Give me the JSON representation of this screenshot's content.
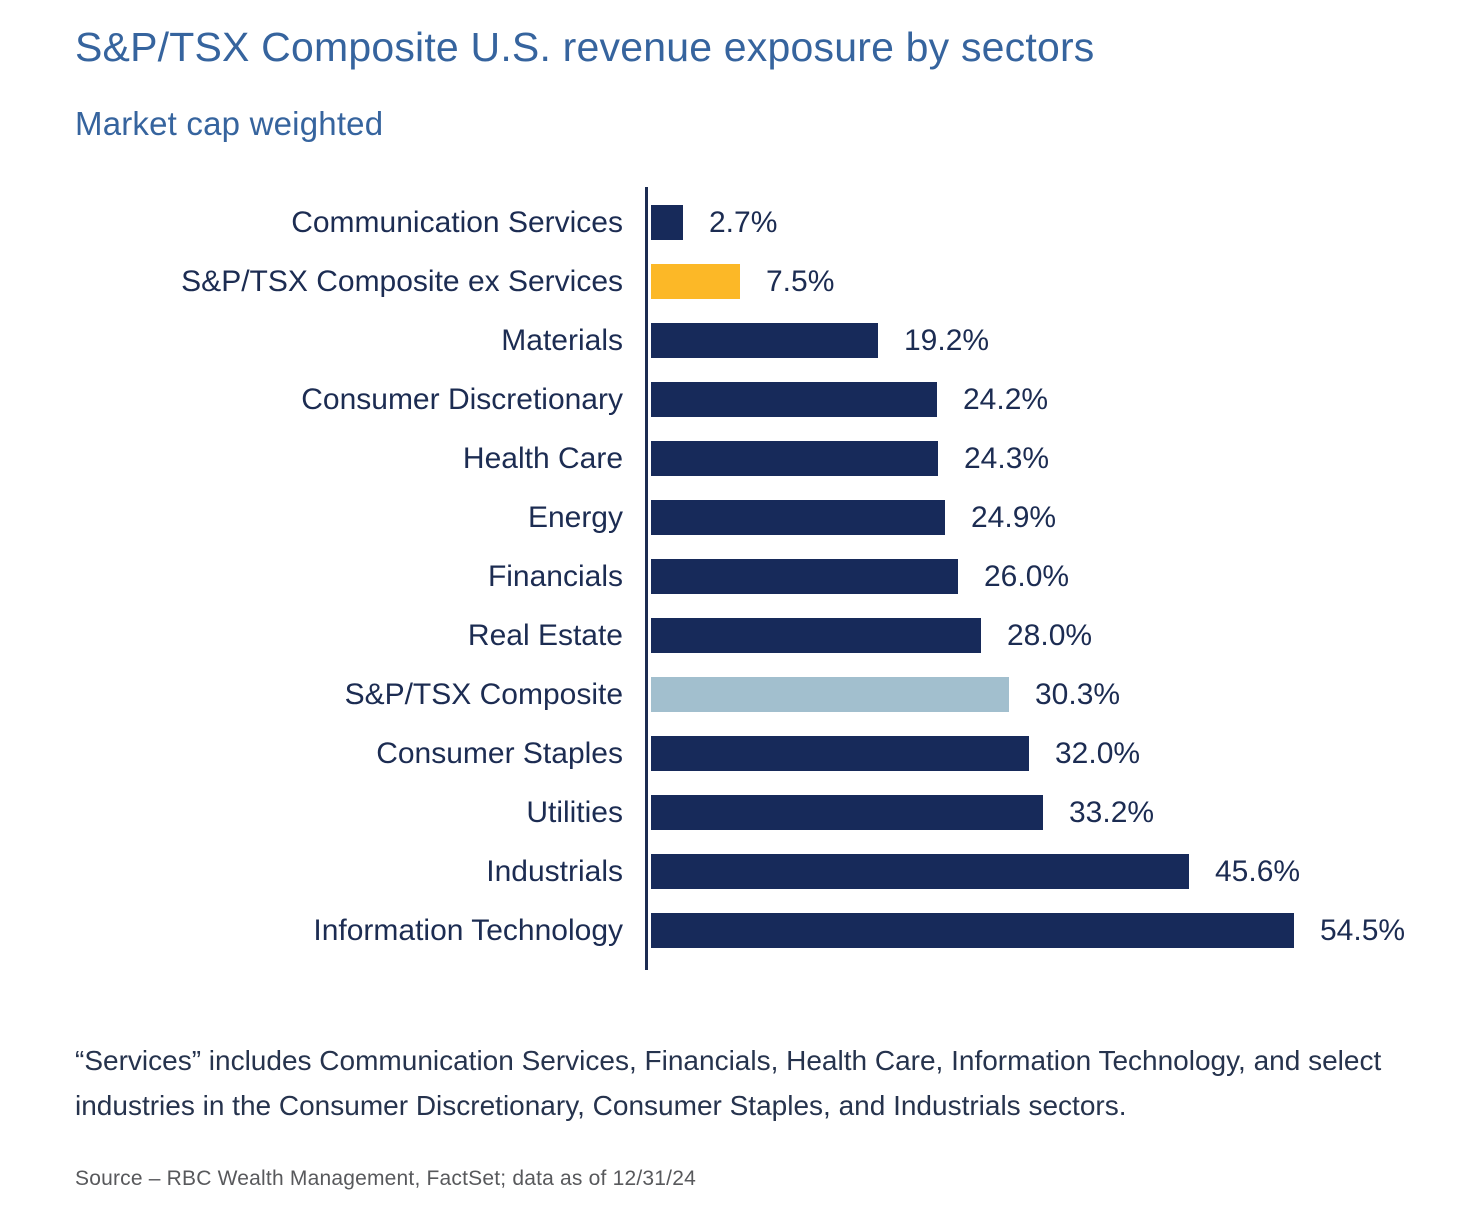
{
  "header": {
    "title": "S&P/TSX Composite U.S. revenue exposure by sectors",
    "subtitle": "Market cap weighted"
  },
  "footnote": {
    "text": "“Services” includes Communication Services, Financials, Health Care, Information Technology, and select industries in the Consumer Discretionary, Consumer Staples, and Industrials sectors."
  },
  "source": {
    "text": "Source – RBC Wealth Management, FactSet; data as of 12/31/24"
  },
  "colors": {
    "title_blue": "#36649e",
    "bar_navy": "#172a5a",
    "bar_yellow": "#fcb827",
    "bar_lightblue": "#a2bfce",
    "label_navy": "#1c2c52",
    "source_gray": "#58595c"
  },
  "chart_data": {
    "type": "bar",
    "orientation": "horizontal",
    "title": "S&P/TSX Composite U.S. revenue exposure by sectors",
    "subtitle": "Market cap weighted",
    "xlabel": "",
    "ylabel": "",
    "xlim": [
      0,
      60
    ],
    "grid": false,
    "legend": false,
    "categories": [
      "Communication Services",
      "S&P/TSX Composite ex Services",
      "Materials",
      "Consumer Discretionary",
      "Health Care",
      "Energy",
      "Financials",
      "Real Estate",
      "S&P/TSX Composite",
      "Consumer Staples",
      "Utilities",
      "Industrials",
      "Information Technology"
    ],
    "values": [
      2.7,
      7.5,
      19.2,
      24.2,
      24.3,
      24.9,
      26.0,
      28.0,
      30.3,
      32.0,
      33.2,
      45.6,
      54.5
    ],
    "value_labels": [
      "2.7%",
      "7.5%",
      "19.2%",
      "24.2%",
      "24.3%",
      "24.9%",
      "26.0%",
      "28.0%",
      "30.3%",
      "32.0%",
      "33.2%",
      "45.6%",
      "54.5%"
    ],
    "bar_colors": [
      "#172a5a",
      "#fcb827",
      "#172a5a",
      "#172a5a",
      "#172a5a",
      "#172a5a",
      "#172a5a",
      "#172a5a",
      "#a2bfce",
      "#172a5a",
      "#172a5a",
      "#172a5a",
      "#172a5a"
    ]
  }
}
